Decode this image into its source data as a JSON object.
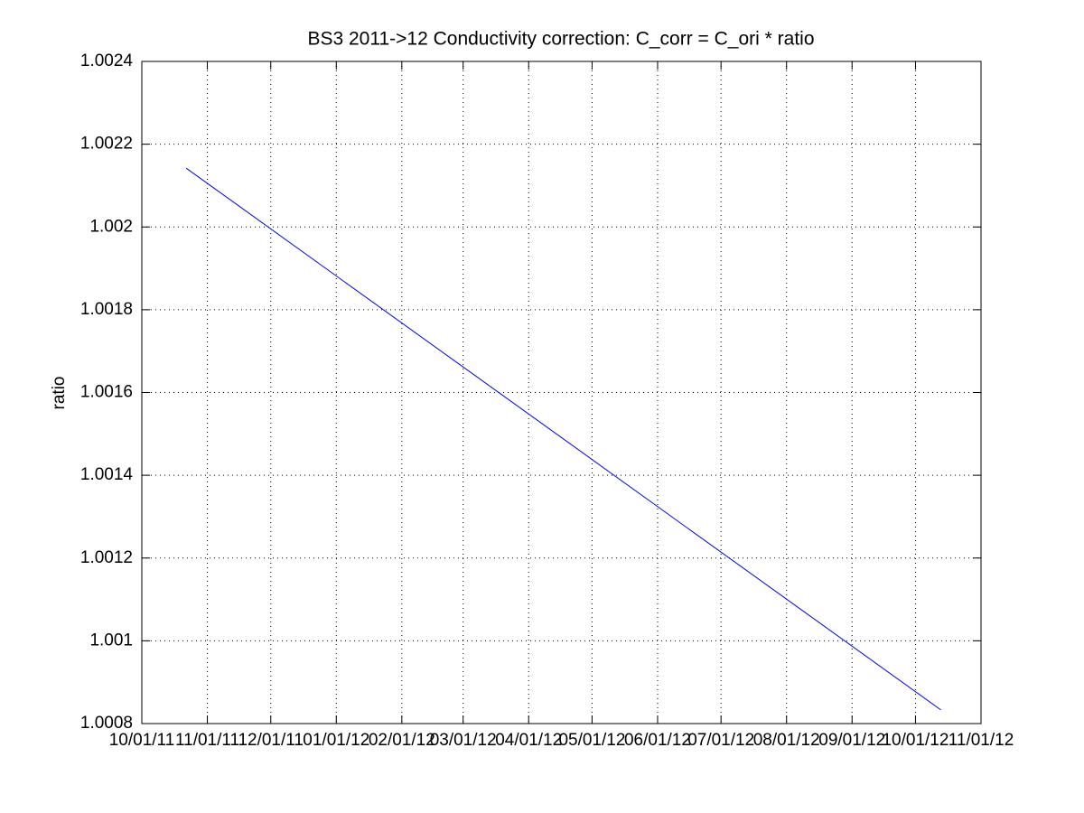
{
  "chart_data": {
    "type": "line",
    "title": "BS3 2011->12 Conductivity correction: C_corr = C_ori * ratio",
    "y_label": "ratio",
    "series": [
      {
        "color": "#0000ff",
        "x": [
          "2011-10-22",
          "2012-10-13"
        ],
        "values": [
          1.002142,
          1.000833
        ]
      }
    ],
    "xlim": [
      "2011-10-01",
      "2012-11-01"
    ],
    "xticks": [
      {
        "value": "2011-10-01",
        "label": "10/01/11"
      },
      {
        "value": "2011-11-01",
        "label": "11/01/11"
      },
      {
        "value": "2011-12-01",
        "label": "12/01/11"
      },
      {
        "value": "2012-01-01",
        "label": "01/01/12"
      },
      {
        "value": "2012-02-01",
        "label": "02/01/12"
      },
      {
        "value": "2012-03-01",
        "label": "03/01/12"
      },
      {
        "value": "2012-04-01",
        "label": "04/01/12"
      },
      {
        "value": "2012-05-01",
        "label": "05/01/12"
      },
      {
        "value": "2012-06-01",
        "label": "06/01/12"
      },
      {
        "value": "2012-07-01",
        "label": "07/01/12"
      },
      {
        "value": "2012-08-01",
        "label": "08/01/12"
      },
      {
        "value": "2012-09-01",
        "label": "09/01/12"
      },
      {
        "value": "2012-10-01",
        "label": "10/01/12"
      },
      {
        "value": "2012-11-01",
        "label": "11/01/12"
      }
    ],
    "ylim": [
      1.0008,
      1.0024
    ],
    "yticks": [
      1.0008,
      1.001,
      1.0012,
      1.0014,
      1.0016,
      1.0018,
      1.002,
      1.0022,
      1.0024
    ],
    "grid": true
  }
}
